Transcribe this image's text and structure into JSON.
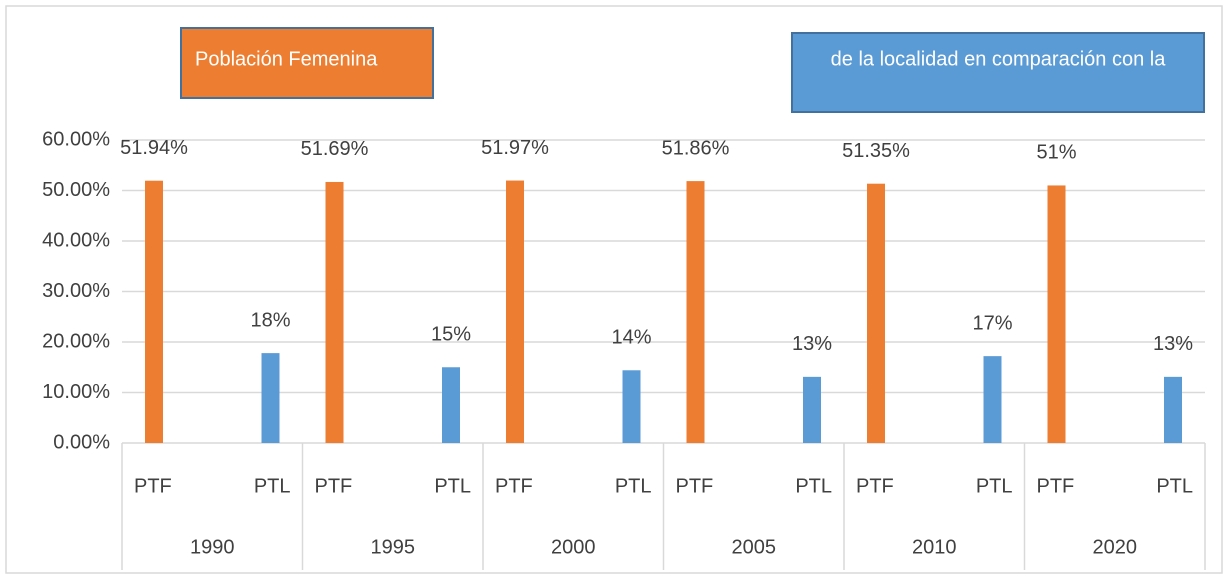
{
  "chart_data": {
    "type": "bar",
    "annotations": [
      "Población Femenina",
      "de la localidad en comparación con la"
    ],
    "categories": [
      "1990",
      "1995",
      "2000",
      "2005",
      "2010",
      "2020"
    ],
    "series": [
      {
        "name": "PTF",
        "color": "#ed7d31",
        "values": [
          51.94,
          51.69,
          51.97,
          51.86,
          51.35,
          51
        ],
        "value_labels": [
          "51.94%",
          "51.69%",
          "51.97%",
          "51.86%",
          "51.35%",
          "51%"
        ]
      },
      {
        "name": "PTL",
        "color": "#5b9bd5",
        "values": [
          17.8,
          15,
          14.4,
          13.1,
          17.2,
          13.1
        ],
        "value_labels": [
          "18%",
          "15%",
          "14%",
          "13%",
          "17%",
          "13%"
        ]
      }
    ],
    "ylim": [
      0,
      60
    ],
    "yticks": [
      {
        "value": 0,
        "label": "0.00%"
      },
      {
        "value": 10,
        "label": "10.00%"
      },
      {
        "value": 20,
        "label": "20.00%"
      },
      {
        "value": 30,
        "label": "30.00%"
      },
      {
        "value": 40,
        "label": "40.00%"
      },
      {
        "value": 50,
        "label": "50.00%"
      },
      {
        "value": 60,
        "label": "60.00%"
      }
    ],
    "grid": true
  }
}
